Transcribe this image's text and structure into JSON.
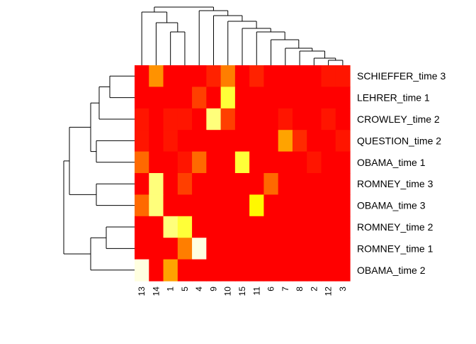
{
  "chart_data": {
    "type": "heatmap",
    "title": "",
    "xlabel": "",
    "ylabel": "",
    "columns": [
      "13",
      "14",
      "1",
      "5",
      "4",
      "9",
      "10",
      "15",
      "11",
      "6",
      "7",
      "8",
      "2",
      "12",
      "3"
    ],
    "rows": [
      "SCHIEFFER_time 3",
      "LEHRER_time 1",
      "CROWLEY_time 2",
      "QUESTION_time 2",
      "OBAMA_time 1",
      "ROMNEY_time 3",
      "OBAMA_time 3",
      "ROMNEY_time 2",
      "ROMNEY_time 1",
      "OBAMA_time 2"
    ],
    "values": [
      [
        0.0,
        0.35,
        0.0,
        0.0,
        0.0,
        0.08,
        0.3,
        0.0,
        0.08,
        0.0,
        0.0,
        0.0,
        0.0,
        0.05,
        0.05
      ],
      [
        0.0,
        0.0,
        0.0,
        0.0,
        0.15,
        0.0,
        0.75,
        0.0,
        0.0,
        0.0,
        0.0,
        0.0,
        0.0,
        0.0,
        0.0
      ],
      [
        0.05,
        0.0,
        0.05,
        0.05,
        0.0,
        0.85,
        0.15,
        0.0,
        0.0,
        0.0,
        0.05,
        0.0,
        0.0,
        0.05,
        0.0
      ],
      [
        0.05,
        0.0,
        0.05,
        0.0,
        0.0,
        0.0,
        0.0,
        0.0,
        0.0,
        0.0,
        0.4,
        0.1,
        0.0,
        0.0,
        0.05
      ],
      [
        0.25,
        0.0,
        0.0,
        0.05,
        0.25,
        0.0,
        0.0,
        0.75,
        0.0,
        0.0,
        0.0,
        0.0,
        0.05,
        0.0,
        0.0
      ],
      [
        0.0,
        0.85,
        0.0,
        0.15,
        0.0,
        0.0,
        0.0,
        0.0,
        0.0,
        0.25,
        0.0,
        0.0,
        0.0,
        0.0,
        0.0
      ],
      [
        0.25,
        0.85,
        0.0,
        0.0,
        0.0,
        0.0,
        0.0,
        0.0,
        0.65,
        0.0,
        0.0,
        0.0,
        0.0,
        0.0,
        0.0
      ],
      [
        0.0,
        0.0,
        0.85,
        0.75,
        0.0,
        0.0,
        0.0,
        0.0,
        0.0,
        0.0,
        0.0,
        0.0,
        0.0,
        0.0,
        0.0
      ],
      [
        0.0,
        0.0,
        0.0,
        0.3,
        1.0,
        0.0,
        0.0,
        0.0,
        0.0,
        0.0,
        0.0,
        0.0,
        0.0,
        0.0,
        0.0
      ],
      [
        1.0,
        0.0,
        0.4,
        0.0,
        0.0,
        0.0,
        0.0,
        0.0,
        0.0,
        0.0,
        0.0,
        0.0,
        0.0,
        0.0,
        0.0
      ]
    ],
    "color_scale": [
      "#FF0000",
      "#FF8C00",
      "#FFFF00",
      "#FFFFE0"
    ],
    "col_dendrogram": [
      [
        "13",
        "14",
        "1",
        "5",
        "4",
        "9",
        "10",
        "15",
        "11",
        "6",
        "7",
        "8",
        "2",
        "12",
        "3"
      ]
    ],
    "row_dendrogram": [
      [
        "SCHIEFFER_time 3",
        "LEHRER_time 1",
        "CROWLEY_time 2",
        "QUESTION_time 2",
        "OBAMA_time 1",
        "ROMNEY_time 3",
        "OBAMA_time 3",
        "ROMNEY_time 2",
        "ROMNEY_time 1",
        "OBAMA_time 2"
      ]
    ],
    "grid": false,
    "legend": "none"
  }
}
